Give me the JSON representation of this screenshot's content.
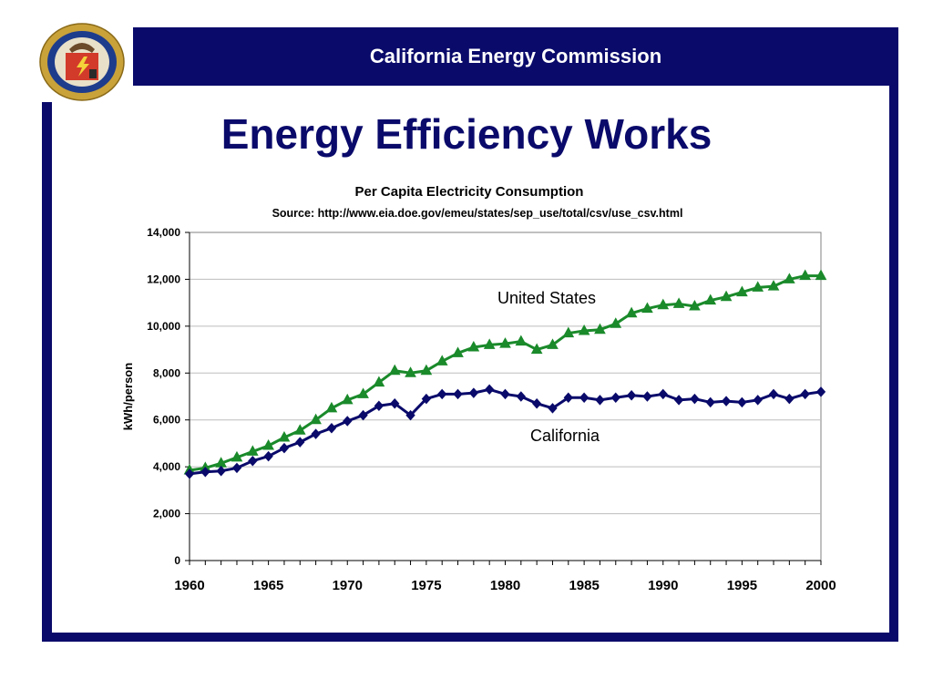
{
  "header": {
    "organization": "California Energy Commission",
    "title": "Energy Efficiency Works",
    "seal_icon": "california-energy-commission-seal-icon",
    "colors": {
      "navy": "#0a0a6b",
      "green": "#1a8a2a"
    }
  },
  "chart_data": {
    "type": "line",
    "title": "Per Capita Electricity Consumption",
    "subtitle": "Source: http://www.eia.doe.gov/emeu/states/sep_use/total/csv/use_csv.html",
    "xlabel": "",
    "ylabel": "kWh/person",
    "xlim": [
      1960,
      2000
    ],
    "ylim": [
      0,
      14000
    ],
    "x_ticks": [
      "1960",
      "1965",
      "1970",
      "1975",
      "1980",
      "1985",
      "1990",
      "1995",
      "2000"
    ],
    "y_ticks": [
      "0",
      "2,000",
      "4,000",
      "6,000",
      "8,000",
      "10,000",
      "12,000",
      "14,000"
    ],
    "grid": "horizontal",
    "x": [
      1960,
      1961,
      1962,
      1963,
      1964,
      1965,
      1966,
      1967,
      1968,
      1969,
      1970,
      1971,
      1972,
      1973,
      1974,
      1975,
      1976,
      1977,
      1978,
      1979,
      1980,
      1981,
      1982,
      1983,
      1984,
      1985,
      1986,
      1987,
      1988,
      1989,
      1990,
      1991,
      1992,
      1993,
      1994,
      1995,
      1996,
      1997,
      1998,
      1999,
      2000
    ],
    "series": [
      {
        "name": "United States",
        "color": "#1a8a2a",
        "marker": "triangle",
        "values": [
          3850,
          3950,
          4150,
          4400,
          4650,
          4900,
          5250,
          5550,
          6000,
          6500,
          6850,
          7100,
          7600,
          8100,
          8000,
          8100,
          8500,
          8850,
          9100,
          9200,
          9250,
          9350,
          9000,
          9200,
          9700,
          9800,
          9850,
          10100,
          10550,
          10750,
          10900,
          10950,
          10850,
          11100,
          11250,
          11450,
          11650,
          11700,
          12000,
          12150,
          12150
        ]
      },
      {
        "name": "California",
        "color": "#0a0a6b",
        "marker": "diamond",
        "values": [
          3700,
          3780,
          3820,
          3950,
          4250,
          4450,
          4800,
          5050,
          5400,
          5650,
          5950,
          6200,
          6600,
          6700,
          6200,
          6900,
          7100,
          7100,
          7150,
          7300,
          7100,
          7000,
          6700,
          6500,
          6950,
          6950,
          6850,
          6950,
          7050,
          7000,
          7100,
          6850,
          6900,
          6750,
          6800,
          6750,
          6850,
          7100,
          6900,
          7100,
          7200
        ]
      }
    ]
  }
}
